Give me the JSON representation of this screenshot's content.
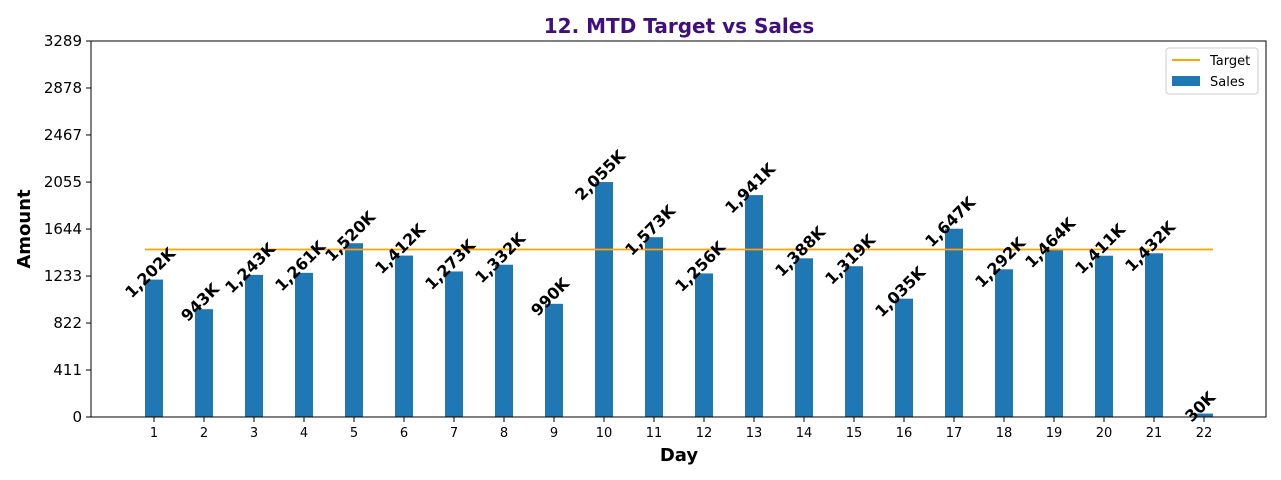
{
  "chart_data": {
    "type": "bar",
    "title": "12. MTD Target vs Sales",
    "xlabel": "Day",
    "ylabel": "Amount",
    "categories": [
      "1",
      "2",
      "3",
      "4",
      "5",
      "6",
      "7",
      "8",
      "9",
      "10",
      "11",
      "12",
      "13",
      "14",
      "15",
      "16",
      "17",
      "18",
      "19",
      "20",
      "21",
      "22"
    ],
    "series": [
      {
        "name": "Sales",
        "type": "bar",
        "color": "#1f77b4",
        "values": [
          1202,
          943,
          1243,
          1261,
          1520,
          1412,
          1273,
          1332,
          990,
          2055,
          1573,
          1256,
          1941,
          1388,
          1319,
          1035,
          1647,
          1292,
          1464,
          1411,
          1432,
          30
        ],
        "labels": [
          "1,202K",
          "943K",
          "1,243K",
          "1,261K",
          "1,520K",
          "1,412K",
          "1,273K",
          "1,332K",
          "990K",
          "2,055K",
          "1,573K",
          "1,256K",
          "1,941K",
          "1,388K",
          "1,319K",
          "1,035K",
          "1,647K",
          "1,292K",
          "1,464K",
          "1,411K",
          "1,432K",
          "30K"
        ]
      },
      {
        "name": "Target",
        "type": "line",
        "color": "#ffa500",
        "value": 1465
      }
    ],
    "yticks": [
      "0",
      "411",
      "822",
      "1233",
      "1644",
      "2055",
      "2467",
      "2878",
      "3289"
    ],
    "ylim": [
      0,
      3289
    ],
    "grid": false,
    "legend": "top-right",
    "legend_order": [
      "Target",
      "Sales"
    ],
    "title_color": "#3f0f7f"
  }
}
